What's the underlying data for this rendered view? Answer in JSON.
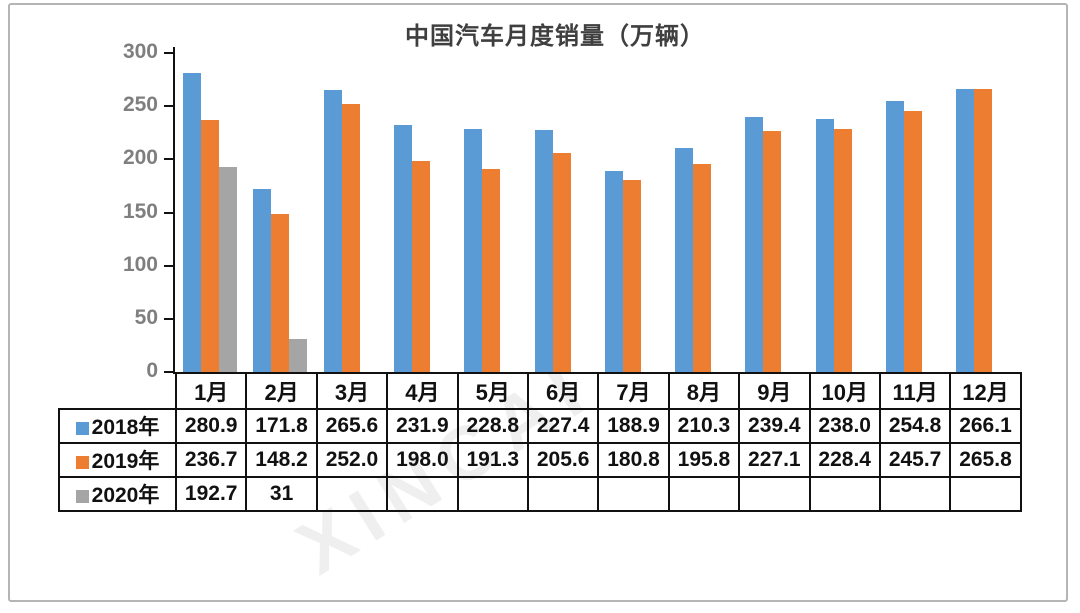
{
  "chart_data": {
    "type": "bar",
    "title": "中国汽车月度销量（万辆）",
    "categories": [
      "1月",
      "2月",
      "3月",
      "4月",
      "5月",
      "6月",
      "7月",
      "8月",
      "9月",
      "10月",
      "11月",
      "12月"
    ],
    "series": [
      {
        "name": "2018年",
        "color": "#5B9BD5",
        "values": [
          280.9,
          171.8,
          265.6,
          231.9,
          228.8,
          227.4,
          188.9,
          210.3,
          239.4,
          238.0,
          254.8,
          266.1
        ]
      },
      {
        "name": "2019年",
        "color": "#ED7D31",
        "values": [
          236.7,
          148.2,
          252.0,
          198.0,
          191.3,
          205.6,
          180.8,
          195.8,
          227.1,
          228.4,
          245.7,
          265.8
        ]
      },
      {
        "name": "2020年",
        "color": "#A5A5A5",
        "values": [
          192.7,
          31,
          null,
          null,
          null,
          null,
          null,
          null,
          null,
          null,
          null,
          null
        ]
      }
    ],
    "xlabel": "",
    "ylabel": "",
    "ylim": [
      0,
      300
    ],
    "yticks": [
      0,
      50,
      100,
      150,
      200,
      250,
      300
    ],
    "grid": false,
    "legend_position": "table-rows-left"
  },
  "table": {
    "rows": [
      {
        "label": "2018年",
        "swatch": "#5B9BD5",
        "cells": [
          "280.9",
          "171.8",
          "265.6",
          "231.9",
          "228.8",
          "227.4",
          "188.9",
          "210.3",
          "239.4",
          "238.0",
          "254.8",
          "266.1"
        ]
      },
      {
        "label": "2019年",
        "swatch": "#ED7D31",
        "cells": [
          "236.7",
          "148.2",
          "252.0",
          "198.0",
          "191.3",
          "205.6",
          "180.8",
          "195.8",
          "227.1",
          "228.4",
          "245.7",
          "265.8"
        ]
      },
      {
        "label": "2020年",
        "swatch": "#A5A5A5",
        "cells": [
          "192.7",
          "31",
          "",
          "",
          "",
          "",
          "",
          "",
          "",
          "",
          "",
          ""
        ]
      }
    ]
  },
  "watermark": {
    "text": "XINCAI"
  }
}
